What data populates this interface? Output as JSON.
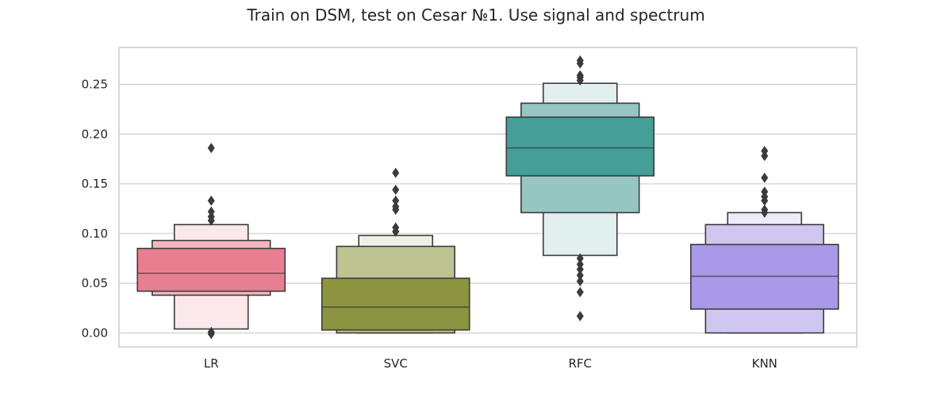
{
  "chart_data": {
    "type": "boxen",
    "title": "Train on DSM, test on Cesar №1. Use signal and spectrum",
    "xlabel": "",
    "ylabel": "",
    "ylim": [
      -0.014,
      0.287
    ],
    "yticks": [
      0.0,
      0.05,
      0.1,
      0.15,
      0.2,
      0.25
    ],
    "ytick_labels": [
      "0.00",
      "0.05",
      "0.10",
      "0.15",
      "0.20",
      "0.25"
    ],
    "grid": true,
    "categories": [
      "LR",
      "SVC",
      "RFC",
      "KNN"
    ],
    "series": [
      {
        "category": "LR",
        "median": 0.06,
        "levels": [
          {
            "low": 0.042,
            "high": 0.085,
            "color": "#e87f91"
          },
          {
            "low": 0.038,
            "high": 0.093,
            "color": "#f3b6c0"
          },
          {
            "low": 0.004,
            "high": 0.109,
            "color": "#fbe8eb"
          }
        ],
        "outliers": [
          0.186,
          0.133,
          0.122,
          0.117,
          0.113,
          0.001,
          -0.001
        ]
      },
      {
        "category": "SVC",
        "median": 0.026,
        "levels": [
          {
            "low": 0.003,
            "high": 0.055,
            "color": "#8c943f"
          },
          {
            "low": 0.0,
            "high": 0.087,
            "color": "#bdc391"
          },
          {
            "low": 0.0,
            "high": 0.098,
            "color": "#eef0e3"
          }
        ],
        "outliers": [
          0.161,
          0.144,
          0.133,
          0.127,
          0.124,
          0.106,
          0.102
        ]
      },
      {
        "category": "RFC",
        "median": 0.186,
        "levels": [
          {
            "low": 0.158,
            "high": 0.217,
            "color": "#459e97"
          },
          {
            "low": 0.121,
            "high": 0.231,
            "color": "#95c6c2"
          },
          {
            "low": 0.078,
            "high": 0.251,
            "color": "#e1f0ee"
          }
        ],
        "outliers": [
          0.274,
          0.271,
          0.259,
          0.257,
          0.254,
          0.075,
          0.069,
          0.064,
          0.058,
          0.052,
          0.041,
          0.017
        ]
      },
      {
        "category": "KNN",
        "median": 0.057,
        "levels": [
          {
            "low": 0.024,
            "high": 0.089,
            "color": "#aa98e8"
          },
          {
            "low": 0.0,
            "high": 0.109,
            "color": "#cfc6f2"
          },
          {
            "low": 0.0,
            "high": 0.121,
            "color": "#efebfa"
          }
        ],
        "outliers": [
          0.183,
          0.178,
          0.156,
          0.142,
          0.137,
          0.133,
          0.124,
          0.121
        ]
      }
    ]
  }
}
